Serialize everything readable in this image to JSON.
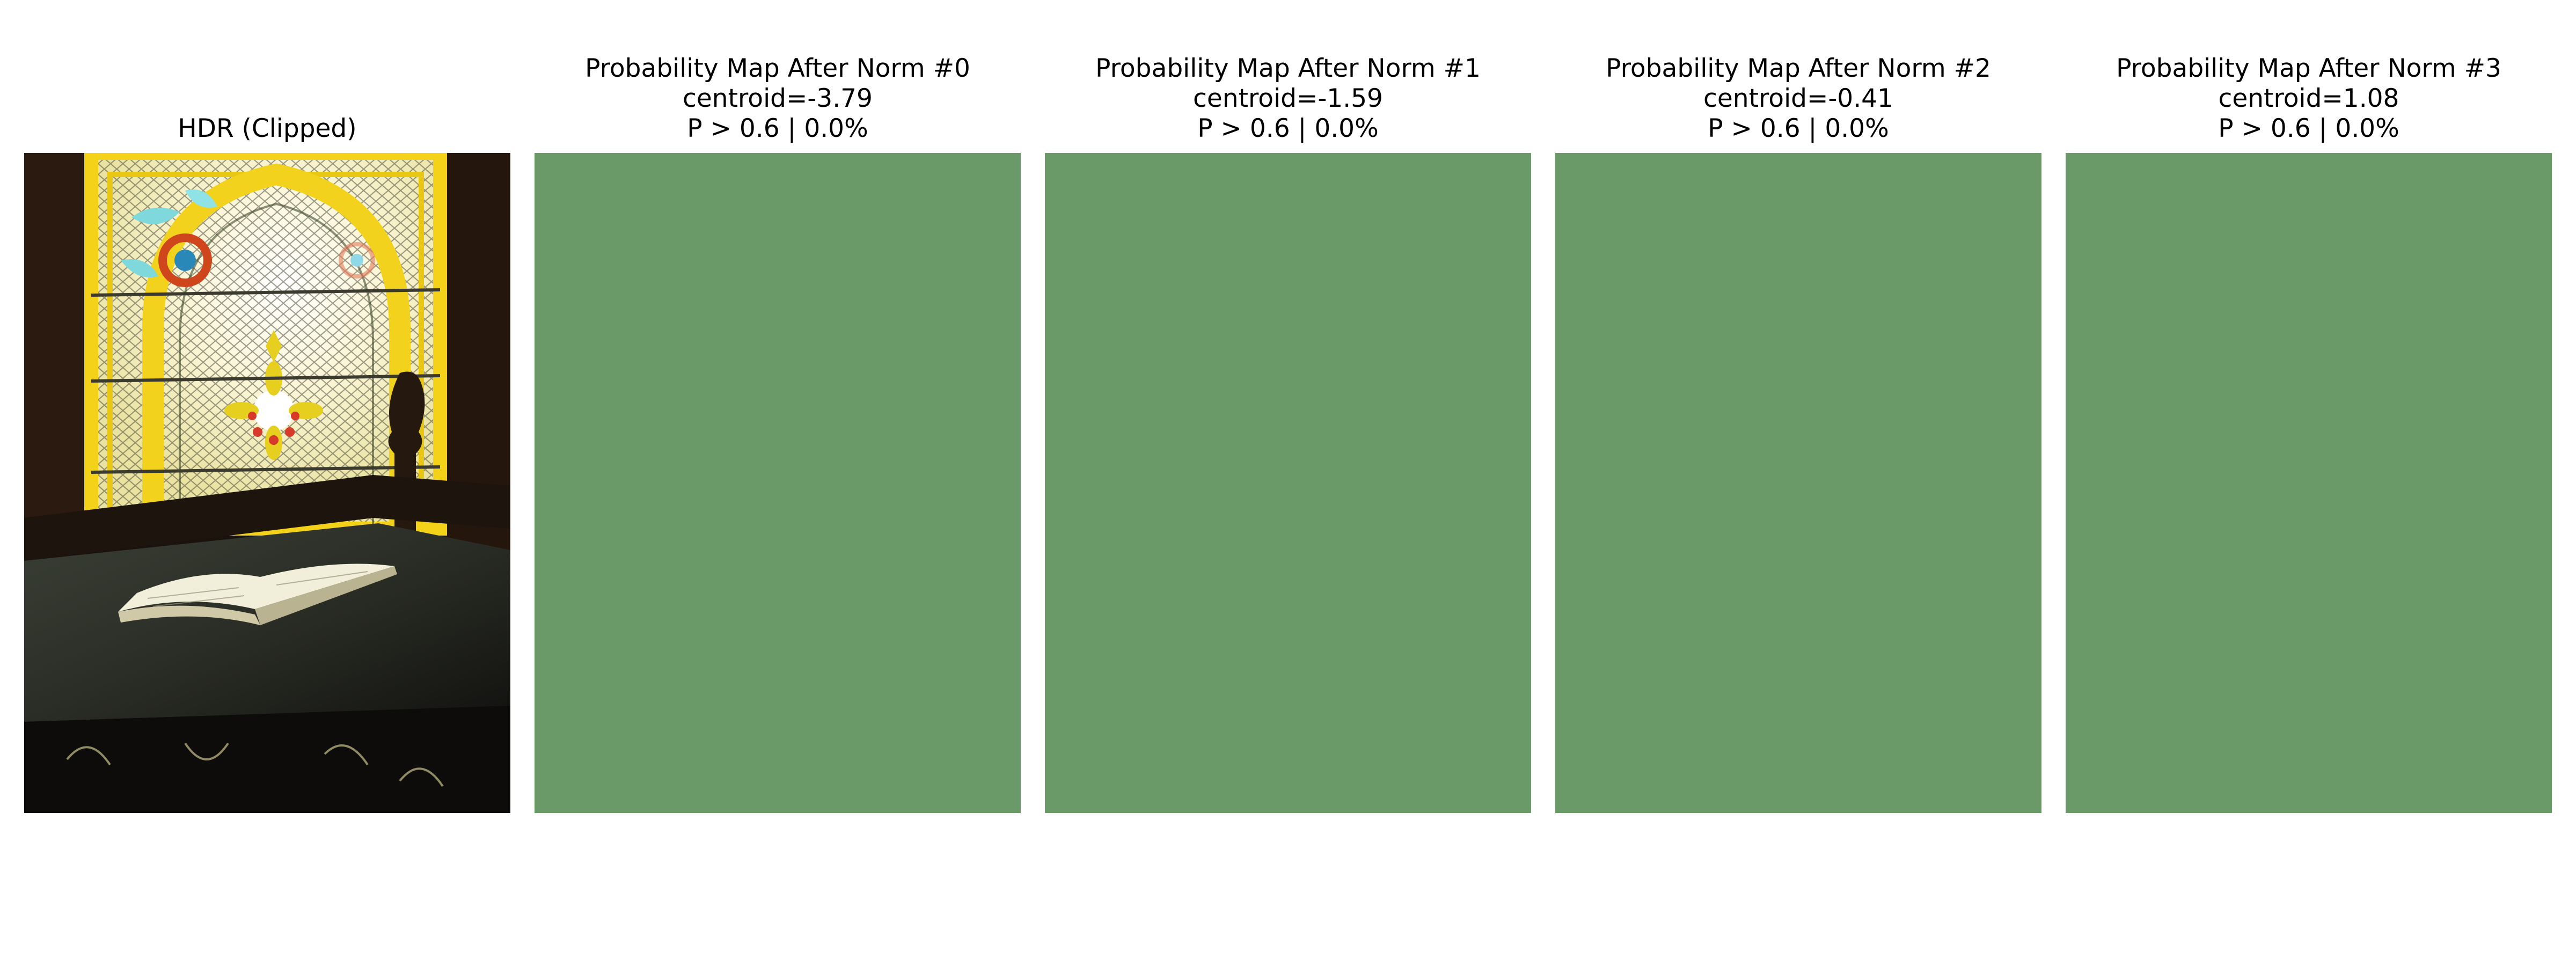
{
  "panels": [
    {
      "title": "HDR (Clipped)",
      "kind": "photo",
      "image": "stained-glass-window-with-open-book"
    },
    {
      "title": "Probability Map After Norm #0",
      "centroid": "centroid=-3.79",
      "stat": "P > 0.6 | 0.0%",
      "kind": "map",
      "fill_color": "#6a9a68"
    },
    {
      "title": "Probability Map After Norm #1",
      "centroid": "centroid=-1.59",
      "stat": "P > 0.6 | 0.0%",
      "kind": "map",
      "fill_color": "#6a9a68"
    },
    {
      "title": "Probability Map After Norm #2",
      "centroid": "centroid=-0.41",
      "stat": "P > 0.6 | 0.0%",
      "kind": "map",
      "fill_color": "#6a9a68"
    },
    {
      "title": "Probability Map After Norm #3",
      "centroid": "centroid=1.08",
      "stat": "P > 0.6 | 0.0%",
      "kind": "map",
      "fill_color": "#6a9a68"
    }
  ]
}
